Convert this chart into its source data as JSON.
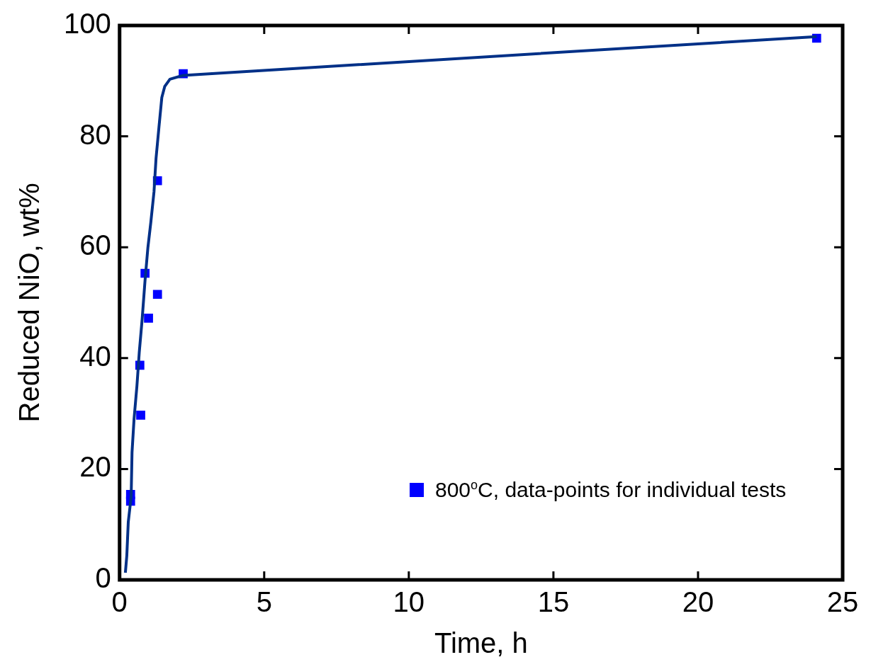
{
  "chart_data": {
    "type": "scatter",
    "xlabel": "Time, h",
    "ylabel": "Reduced NiO, wt%",
    "xlim": [
      0,
      25
    ],
    "xticks": [
      0,
      5,
      10,
      15,
      20,
      25
    ],
    "ylim": [
      0,
      100
    ],
    "yticks": [
      0,
      20,
      40,
      60,
      80,
      100
    ],
    "grid": false,
    "legend": "bottom right",
    "series": [
      {
        "type": "line",
        "color": "#003087",
        "marker": "none",
        "line_style": "solid",
        "x": [
          0.2,
          0.25,
          0.3,
          0.4,
          0.43,
          0.5,
          0.6,
          0.68,
          0.78,
          0.88,
          0.98,
          1.08,
          1.19,
          1.26,
          1.36,
          1.46,
          1.56,
          1.74,
          2.2,
          24.1
        ],
        "values": [
          1.3,
          4.4,
          10.4,
          15,
          23,
          29,
          35,
          41,
          47,
          54,
          60,
          64.5,
          70,
          76,
          81.6,
          87,
          89,
          90.3,
          91,
          98
        ]
      },
      {
        "name": "800$^{o}$C, data-points for individual tests",
        "color": "#0000ff",
        "marker": "square",
        "x": [
          0.38,
          0.38,
          0.7,
          0.73,
          0.88,
          1.0,
          1.31,
          1.31,
          2.2,
          24.1
        ],
        "values": [
          15.4,
          14.2,
          38.7,
          29.7,
          55.3,
          47.2,
          72,
          51.5,
          91.3,
          97.7
        ]
      }
    ]
  }
}
